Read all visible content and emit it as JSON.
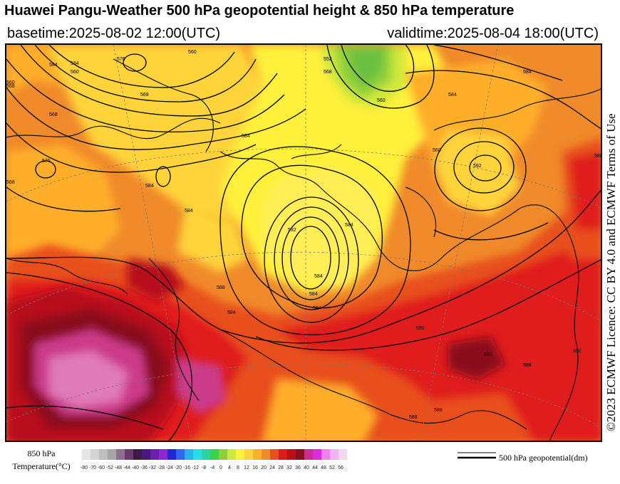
{
  "header": {
    "title": "Huawei Pangu-Weather 500 hPa geopotential height & 850 hPa temperature",
    "basetime": "basetime:2025-08-02 12:00(UTC)",
    "validtime": "validtime:2025-08-04 18:00(UTC)"
  },
  "license": "©2023 ECMWF Licence: CC BY 4.0 and ECMWF Terms of Use",
  "legend": {
    "temp_label_line1": "850 hPa",
    "temp_label_line2": "Temperature(°C)",
    "ticks": [
      "-80",
      "-70",
      "-60",
      "-52",
      "-48",
      "-44",
      "-40",
      "-36",
      "-32",
      "-28",
      "-24",
      "-20",
      "-16",
      "-12",
      "-8",
      "-4",
      "0",
      "4",
      "8",
      "12",
      "16",
      "20",
      "24",
      "28",
      "32",
      "36",
      "40",
      "44",
      "48",
      "52",
      "56"
    ],
    "colors": [
      "#e6e6e6",
      "#d4d4d4",
      "#bebebe",
      "#a6a6a6",
      "#8f6f8f",
      "#6a3a6a",
      "#3d1a4e",
      "#4a1880",
      "#6a1fb0",
      "#8a28d8",
      "#1f2ad6",
      "#2a6af0",
      "#26b4f0",
      "#26e0e0",
      "#2ad6a0",
      "#3ad04a",
      "#8ed03a",
      "#cfe83a",
      "#fff03a",
      "#ffd43a",
      "#ffae2a",
      "#f08a2a",
      "#e8501e",
      "#e01a1a",
      "#b80f1a",
      "#8a0f1e",
      "#cc2a9a",
      "#e02ae0",
      "#f080f0",
      "#f0b4f0",
      "#f5d8ec"
    ],
    "contour_label": "500 hPa geopotential(dm)"
  },
  "map": {
    "contour_labels": [
      "584",
      "584",
      "576",
      "568",
      "560",
      "552",
      "568",
      "584",
      "560",
      "592",
      "584",
      "584",
      "584",
      "568",
      "576",
      "560",
      "584",
      "584",
      "584",
      "584",
      "560",
      "568",
      "592",
      "584",
      "588",
      "592",
      "592",
      "588",
      "592",
      "588",
      "588",
      "588",
      "560",
      "568",
      "584"
    ]
  }
}
